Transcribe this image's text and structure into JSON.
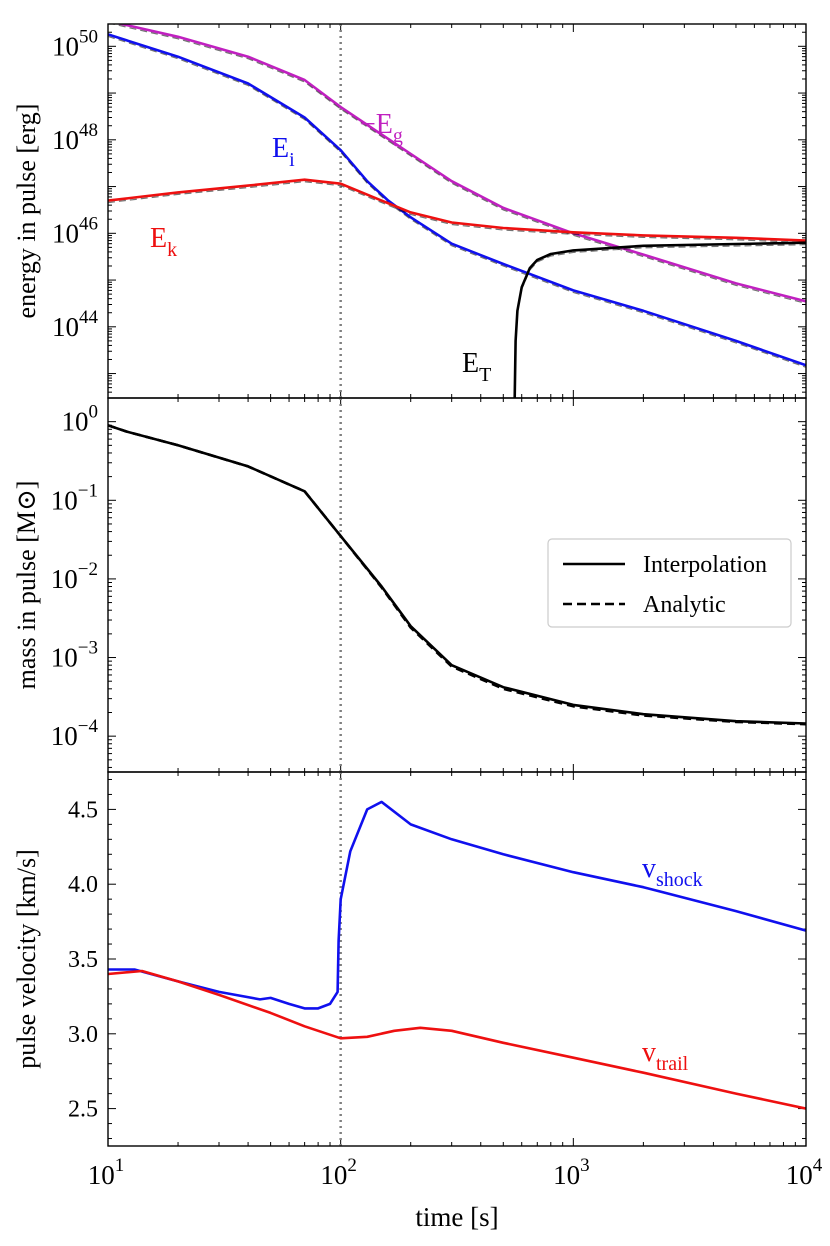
{
  "chart_data": [
    {
      "type": "line",
      "panel": "energy",
      "xscale": "log",
      "yscale": "log",
      "xlim": [
        10,
        10000
      ],
      "ylim": [
        3e+42,
        3e+50
      ],
      "ylabel": "energy in pulse [erg]",
      "xticks": [
        10,
        100,
        1000,
        10000
      ],
      "yticks": [
        {
          "value": 1e+44,
          "base": "10",
          "exp": "44"
        },
        {
          "value": 1e+46,
          "base": "10",
          "exp": "46"
        },
        {
          "value": 1e+48,
          "base": "10",
          "exp": "48"
        },
        {
          "value": 1e+50,
          "base": "10",
          "exp": "50"
        }
      ],
      "series": [
        {
          "name": "−E_g",
          "label_main": "−E",
          "label_sub": "g",
          "color": "#c020c0",
          "x": [
            10,
            20,
            40,
            70,
            100,
            150,
            200,
            300,
            500,
            1000,
            2000,
            5000,
            10000
          ],
          "y": [
            3.5e+50,
            1.6e+50,
            6e+49,
            1.9e+49,
            5e+48,
            1.3e+48,
            5e+47,
            1.3e+47,
            3.5e+46,
            1e+46,
            3.5e+45,
            8.5e+44,
            3.5e+44
          ]
        },
        {
          "name": "E_i",
          "label_main": "E",
          "label_sub": "i",
          "color": "#1010ee",
          "x": [
            10,
            20,
            40,
            70,
            100,
            130,
            160,
            200,
            300,
            500,
            1000,
            2000,
            5000,
            10000
          ],
          "y": [
            1.8e+50,
            6e+49,
            1.6e+49,
            3e+48,
            6e+47,
            1.3e+47,
            5e+46,
            2.2e+46,
            6e+45,
            2.2e+45,
            6e+44,
            2.2e+44,
            5e+43,
            1.5e+43
          ]
        },
        {
          "name": "E_k",
          "label_main": "E",
          "label_sub": "k",
          "color": "#ee1010",
          "x": [
            10,
            20,
            40,
            70,
            100,
            150,
            200,
            300,
            500,
            1000,
            2000,
            5000,
            10000
          ],
          "y": [
            5e+46,
            7.5e+46,
            1.05e+47,
            1.4e+47,
            1.15e+47,
            5e+46,
            2.8e+46,
            1.7e+46,
            1.3e+46,
            1.05e+46,
            9e+45,
            8e+45,
            7e+45
          ]
        },
        {
          "name": "E_T",
          "label_main": "E",
          "label_sub": "T",
          "color": "#000000",
          "x": [
            560,
            565,
            575,
            600,
            650,
            700,
            800,
            1000,
            2000,
            5000,
            10000
          ],
          "y": [
            3e+42,
            5e+43,
            2.2e+44,
            7e+44,
            1.8e+45,
            2.7e+45,
            3.6e+45,
            4.3e+45,
            5.4e+45,
            5.9e+45,
            6.3e+45
          ]
        }
      ]
    },
    {
      "type": "line",
      "panel": "mass",
      "xscale": "log",
      "yscale": "log",
      "xlim": [
        10,
        10000
      ],
      "ylim": [
        3.5e-05,
        2.0
      ],
      "ylabel": "mass in pulse [M⊙]",
      "xticks": [
        10,
        100,
        1000,
        10000
      ],
      "yticks": [
        {
          "value": 0.0001,
          "base": "10",
          "exp": "−4"
        },
        {
          "value": 0.001,
          "base": "10",
          "exp": "−3"
        },
        {
          "value": 0.01,
          "base": "10",
          "exp": "−2"
        },
        {
          "value": 0.1,
          "base": "10",
          "exp": "−1"
        },
        {
          "value": 1,
          "base": "10",
          "exp": "0"
        }
      ],
      "legend": {
        "position": "right",
        "entries": [
          "Interpolation",
          "Analytic"
        ],
        "styles": [
          "solid",
          "dashed"
        ]
      },
      "series": [
        {
          "name": "Interpolation",
          "style": "solid",
          "color": "#000000",
          "x": [
            10,
            12,
            20,
            40,
            70,
            100,
            150,
            200,
            300,
            500,
            1000,
            2000,
            5000,
            10000
          ],
          "y": [
            0.9,
            0.75,
            0.5,
            0.27,
            0.13,
            0.035,
            0.008,
            0.0025,
            0.0008,
            0.00042,
            0.00025,
            0.00019,
            0.000155,
            0.000145
          ]
        },
        {
          "name": "Analytic",
          "style": "dashed",
          "color": "#000000",
          "x": [
            10,
            12,
            20,
            40,
            70,
            100,
            150,
            200,
            300,
            500,
            1000,
            2000,
            5000,
            10000
          ],
          "y": [
            0.9,
            0.75,
            0.5,
            0.27,
            0.13,
            0.035,
            0.0078,
            0.0024,
            0.00077,
            0.0004,
            0.00024,
            0.000183,
            0.000152,
            0.000142
          ]
        }
      ]
    },
    {
      "type": "line",
      "panel": "velocity",
      "xscale": "log",
      "yscale": "linear",
      "xlim": [
        10,
        10000
      ],
      "ylim": [
        2.25,
        4.75
      ],
      "xlabel": "time [s]",
      "ylabel": "pulse velocity [km/s]",
      "xticks": [
        {
          "value": 10,
          "base": "10",
          "exp": "1"
        },
        {
          "value": 100,
          "base": "10",
          "exp": "2"
        },
        {
          "value": 1000,
          "base": "10",
          "exp": "3"
        },
        {
          "value": 10000,
          "base": "10",
          "exp": "4"
        }
      ],
      "yticks": [
        2.5,
        3.0,
        3.5,
        4.0,
        4.5
      ],
      "series": [
        {
          "name": "v_shock",
          "label_main": "v",
          "label_sub": "shock",
          "color": "#1010ee",
          "x": [
            10,
            13,
            20,
            30,
            45,
            50,
            60,
            70,
            80,
            90,
            97,
            98,
            100,
            110,
            130,
            150,
            200,
            300,
            500,
            1000,
            2000,
            5000,
            10000
          ],
          "y": [
            3.43,
            3.43,
            3.35,
            3.28,
            3.23,
            3.24,
            3.2,
            3.17,
            3.17,
            3.2,
            3.28,
            3.62,
            3.9,
            4.22,
            4.5,
            4.55,
            4.4,
            4.3,
            4.2,
            4.08,
            3.98,
            3.82,
            3.69
          ]
        },
        {
          "name": "v_trail",
          "label_main": "v",
          "label_sub": "trail",
          "color": "#ee1010",
          "x": [
            10,
            14,
            20,
            30,
            50,
            70,
            100,
            130,
            170,
            220,
            300,
            500,
            1000,
            2000,
            5000,
            10000
          ],
          "y": [
            3.4,
            3.42,
            3.35,
            3.26,
            3.14,
            3.05,
            2.97,
            2.98,
            3.02,
            3.04,
            3.02,
            2.94,
            2.84,
            2.74,
            2.6,
            2.5
          ]
        }
      ]
    }
  ],
  "shared": {
    "vline_x": 100,
    "vline_color": "#808080"
  }
}
